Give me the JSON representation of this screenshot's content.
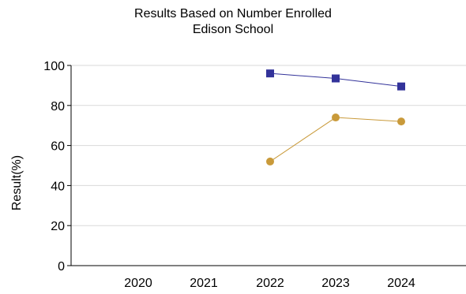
{
  "chart_data": {
    "type": "line",
    "title": "Results Based on Number Enrolled",
    "subtitle": "Edison School",
    "xlabel": "",
    "ylabel": "Result(%)",
    "categories": [
      "2020",
      "2021",
      "2022",
      "2023",
      "2024"
    ],
    "ylim": [
      0,
      100
    ],
    "yticks": [
      0,
      20,
      40,
      60,
      80,
      100
    ],
    "grid": true,
    "legend": "none",
    "series": [
      {
        "values": [
          null,
          null,
          96,
          93.5,
          89.5
        ],
        "color": "#33339a",
        "marker": "square"
      },
      {
        "values": [
          null,
          null,
          52,
          74,
          72
        ],
        "color": "#c99a3a",
        "marker": "circle"
      }
    ]
  }
}
